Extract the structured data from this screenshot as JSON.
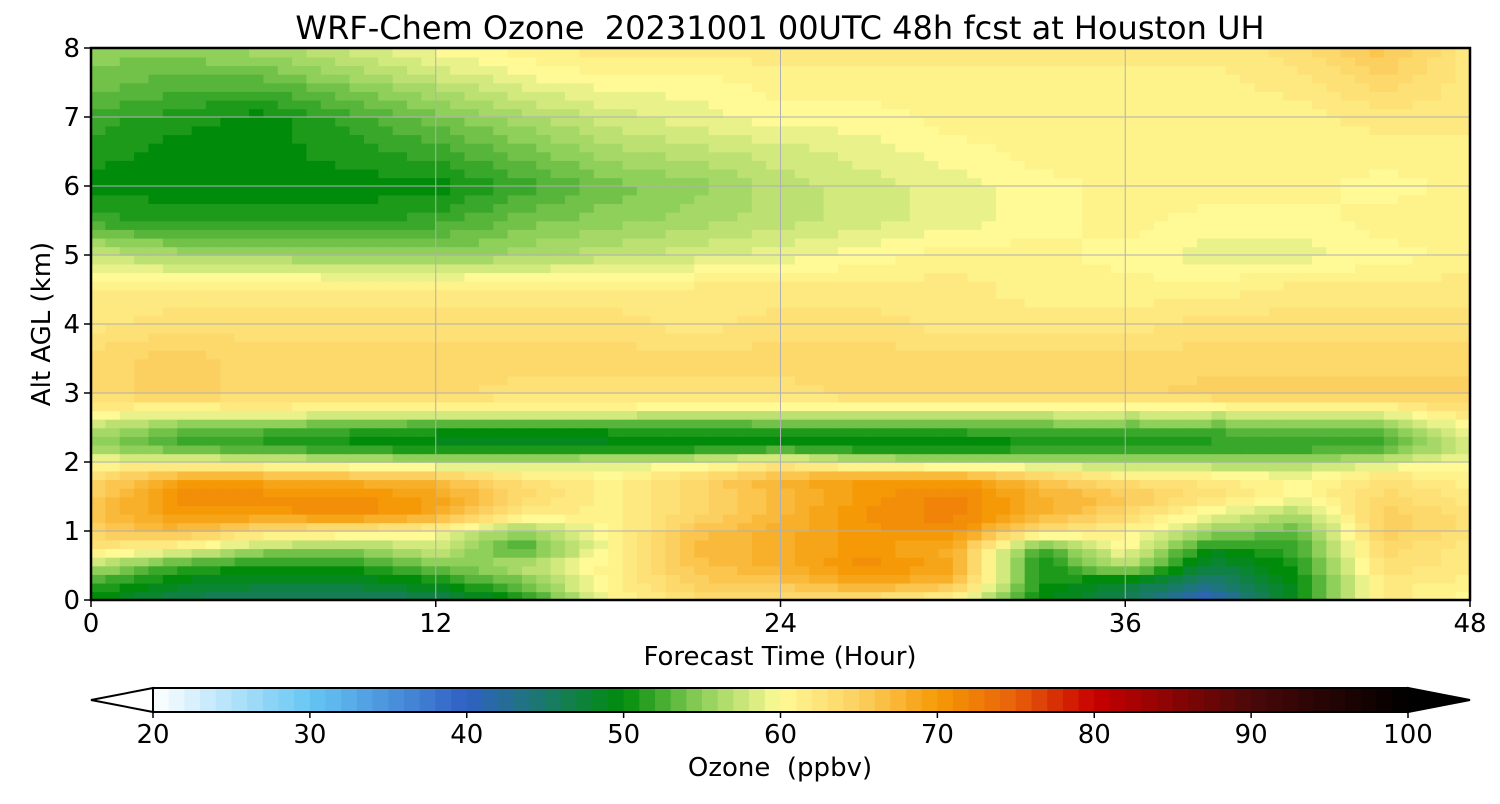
{
  "chart_data": {
    "type": "heatmap",
    "title": "WRF-Chem Ozone  20231001 00UTC 48h fcst at Houston UH",
    "xlabel": "Forecast Time (Hour)",
    "ylabel": "Alt AGL (km)",
    "xlim": [
      0,
      48
    ],
    "ylim": [
      0,
      8
    ],
    "x_ticks": [
      0,
      12,
      24,
      36,
      48
    ],
    "y_ticks": [
      0,
      1,
      2,
      3,
      4,
      5,
      6,
      7,
      8
    ],
    "grid": true,
    "colorbar": {
      "label": "Ozone  (ppbv)",
      "ticks": [
        20,
        30,
        40,
        50,
        60,
        70,
        80,
        90,
        100
      ],
      "range": [
        20,
        100
      ],
      "extend": "both",
      "stops": [
        {
          "value": 20,
          "color": "#ffffff"
        },
        {
          "value": 30,
          "color": "#66c6f4"
        },
        {
          "value": 40,
          "color": "#3060c4"
        },
        {
          "value": 45,
          "color": "#1a7a6a"
        },
        {
          "value": 50,
          "color": "#008c0a"
        },
        {
          "value": 55,
          "color": "#8fd05a"
        },
        {
          "value": 60,
          "color": "#fffa96"
        },
        {
          "value": 65,
          "color": "#fcd060"
        },
        {
          "value": 70,
          "color": "#f59a06"
        },
        {
          "value": 75,
          "color": "#e8600a"
        },
        {
          "value": 80,
          "color": "#c80000"
        },
        {
          "value": 90,
          "color": "#4a0808"
        },
        {
          "value": 100,
          "color": "#000000"
        }
      ]
    },
    "x": [
      0,
      3,
      6,
      9,
      12,
      15,
      18,
      21,
      24,
      27,
      30,
      33,
      36,
      39,
      42,
      45,
      48
    ],
    "y": [
      0,
      0.25,
      0.5,
      0.75,
      1.0,
      1.25,
      1.5,
      1.75,
      2.0,
      2.25,
      2.5,
      2.75,
      3.0,
      3.5,
      4.0,
      4.5,
      5.0,
      5.5,
      6.0,
      6.5,
      7.0,
      7.5,
      8.0
    ],
    "values": [
      [
        50,
        46,
        45,
        45,
        46,
        50,
        60,
        63,
        63,
        62,
        60,
        50,
        46,
        40,
        50,
        62,
        60
      ],
      [
        52,
        49,
        48,
        48,
        50,
        54,
        61,
        65,
        66,
        69,
        67,
        51,
        48,
        44,
        50,
        62,
        61
      ],
      [
        57,
        52,
        50,
        51,
        54,
        57,
        61,
        66,
        68,
        71,
        69,
        50,
        57,
        47,
        51,
        63,
        62
      ],
      [
        62,
        60,
        56,
        55,
        58,
        52,
        60,
        67,
        68,
        70,
        68,
        52,
        60,
        50,
        52,
        64,
        62
      ],
      [
        65,
        67,
        63,
        62,
        60,
        55,
        60,
        66,
        68,
        70,
        71,
        63,
        61,
        56,
        53,
        65,
        63
      ],
      [
        66,
        70,
        70,
        71,
        69,
        62,
        61,
        64,
        67,
        71,
        72,
        68,
        64,
        59,
        56,
        65,
        63
      ],
      [
        65,
        71,
        71,
        71,
        69,
        64,
        61,
        64,
        67,
        70,
        72,
        68,
        66,
        63,
        60,
        64,
        62
      ],
      [
        64,
        69,
        69,
        68,
        67,
        63,
        61,
        64,
        68,
        70,
        70,
        66,
        63,
        62,
        60,
        63,
        61
      ],
      [
        60,
        60,
        59,
        58,
        57,
        57,
        58,
        59,
        61,
        58,
        57,
        57,
        56,
        56,
        56,
        58,
        60
      ],
      [
        55,
        52,
        51,
        50,
        49,
        49,
        49,
        49,
        50,
        49,
        49,
        50,
        50,
        51,
        51,
        52,
        58
      ],
      [
        57,
        54,
        53,
        52,
        51,
        50,
        51,
        51,
        52,
        52,
        52,
        53,
        53,
        53,
        53,
        54,
        60
      ],
      [
        61,
        60,
        61,
        60,
        60,
        60,
        60,
        59,
        59,
        59,
        59,
        59,
        59,
        59,
        59,
        60,
        63
      ],
      [
        64,
        65,
        64,
        64,
        64,
        63,
        63,
        63,
        63,
        64,
        64,
        64,
        64,
        65,
        65,
        65,
        65
      ],
      [
        64,
        65,
        64,
        64,
        64,
        64,
        64,
        64,
        64,
        64,
        64,
        64,
        64,
        64,
        64,
        64,
        64
      ],
      [
        62,
        63,
        63,
        63,
        63,
        63,
        63,
        62,
        63,
        63,
        62,
        62,
        62,
        63,
        63,
        63,
        63
      ],
      [
        62,
        62,
        62,
        62,
        62,
        62,
        62,
        62,
        62,
        62,
        62,
        61,
        61,
        61,
        62,
        62,
        62
      ],
      [
        58,
        56,
        56,
        55,
        55,
        56,
        57,
        58,
        59,
        60,
        61,
        61,
        60,
        59,
        59,
        60,
        61
      ],
      [
        52,
        51,
        51,
        51,
        52,
        54,
        55,
        56,
        57,
        58,
        59,
        60,
        61,
        60,
        60,
        61,
        61
      ],
      [
        50,
        50,
        50,
        50,
        50,
        52,
        54,
        55,
        57,
        58,
        59,
        60,
        61,
        61,
        61,
        60,
        61
      ],
      [
        51,
        50,
        50,
        51,
        52,
        54,
        56,
        57,
        58,
        59,
        60,
        61,
        61,
        61,
        61,
        61,
        61
      ],
      [
        52,
        51,
        50,
        52,
        54,
        56,
        58,
        59,
        60,
        60,
        61,
        61,
        61,
        61,
        61,
        62,
        62
      ],
      [
        54,
        53,
        53,
        55,
        57,
        59,
        60,
        60,
        61,
        61,
        61,
        61,
        61,
        61,
        62,
        64,
        62
      ],
      [
        55,
        55,
        56,
        58,
        60,
        61,
        62,
        62,
        62,
        62,
        62,
        62,
        62,
        62,
        63,
        66,
        62
      ]
    ]
  }
}
